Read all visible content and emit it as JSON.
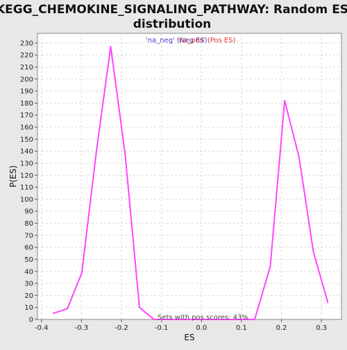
{
  "chart_data": {
    "type": "line",
    "title_lines": [
      "KEGG_CHEMOKINE_SIGNALING_PATHWAY: Random ES",
      "distribution"
    ],
    "xlabel": "ES",
    "ylabel": "P(ES)",
    "xlim": [
      -0.41,
      0.35
    ],
    "ylim": [
      0,
      238
    ],
    "x_ticks": [
      -0.4,
      -0.3,
      -0.2,
      -0.1,
      0.0,
      0.1,
      0.2,
      0.3
    ],
    "x_tick_labels": [
      "-0.4",
      "-0.3",
      "-0.2",
      "-0.1",
      "0.0",
      "0.1",
      "0.2",
      "0.3"
    ],
    "y_ticks": [
      0,
      10,
      20,
      30,
      40,
      50,
      60,
      70,
      80,
      90,
      100,
      110,
      120,
      130,
      140,
      150,
      160,
      170,
      180,
      190,
      200,
      210,
      220,
      230
    ],
    "grid": true,
    "legend": [
      {
        "label": "'na_neg' (Neg ES)",
        "color": "#4444cc"
      },
      {
        "label": "'na_pos' (Pos ES)",
        "color": "#dd3333"
      }
    ],
    "annotation": "Sets with pos scores: 43%",
    "series": [
      {
        "color": "#ff44ff",
        "x": [
          -0.371,
          -0.335,
          -0.299,
          -0.263,
          -0.227,
          -0.191,
          -0.155,
          -0.119,
          -0.083,
          -0.047,
          -0.011,
          0.025,
          0.061,
          0.097,
          0.133,
          0.172,
          0.208,
          0.244,
          0.28,
          0.316
        ],
        "y": [
          5,
          9,
          39,
          139,
          227,
          138,
          10,
          0,
          0,
          0,
          0,
          0,
          0,
          0,
          0,
          44,
          182,
          135,
          56,
          14
        ]
      }
    ]
  }
}
